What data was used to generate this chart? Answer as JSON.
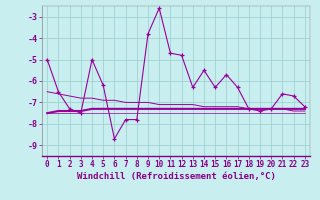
{
  "xlabel": "Windchill (Refroidissement éolien,°C)",
  "background_color": "#c8eef0",
  "grid_color": "#99cccc",
  "line_color": "#990099",
  "x_hours": [
    0,
    1,
    2,
    3,
    4,
    5,
    6,
    7,
    8,
    9,
    10,
    11,
    12,
    13,
    14,
    15,
    16,
    17,
    18,
    19,
    20,
    21,
    22,
    23
  ],
  "windchill": [
    -5.0,
    -6.5,
    -7.3,
    -7.5,
    -5.0,
    -6.2,
    -8.7,
    -7.8,
    -7.8,
    -3.8,
    -2.6,
    -4.7,
    -4.8,
    -6.3,
    -5.5,
    -6.3,
    -5.7,
    -6.3,
    -7.3,
    -7.4,
    -7.3,
    -6.6,
    -6.7,
    -7.2
  ],
  "line2": [
    -6.5,
    -6.6,
    -6.7,
    -6.8,
    -6.8,
    -6.9,
    -6.9,
    -7.0,
    -7.0,
    -7.0,
    -7.1,
    -7.1,
    -7.1,
    -7.1,
    -7.2,
    -7.2,
    -7.2,
    -7.2,
    -7.3,
    -7.3,
    -7.3,
    -7.3,
    -7.4,
    -7.4
  ],
  "line3": [
    -7.5,
    -7.4,
    -7.4,
    -7.4,
    -7.3,
    -7.3,
    -7.3,
    -7.3,
    -7.3,
    -7.3,
    -7.3,
    -7.3,
    -7.3,
    -7.3,
    -7.3,
    -7.3,
    -7.3,
    -7.3,
    -7.3,
    -7.3,
    -7.3,
    -7.3,
    -7.3,
    -7.3
  ],
  "line4": [
    -7.5,
    -7.5,
    -7.5,
    -7.5,
    -7.5,
    -7.5,
    -7.5,
    -7.5,
    -7.5,
    -7.5,
    -7.5,
    -7.5,
    -7.5,
    -7.5,
    -7.5,
    -7.5,
    -7.5,
    -7.5,
    -7.5,
    -7.5,
    -7.5,
    -7.5,
    -7.5,
    -7.5
  ],
  "ylim": [
    -9.5,
    -2.5
  ],
  "xlim": [
    -0.5,
    23.5
  ],
  "yticks": [
    -9,
    -8,
    -7,
    -6,
    -5,
    -4,
    -3
  ],
  "xticks": [
    0,
    1,
    2,
    3,
    4,
    5,
    6,
    7,
    8,
    9,
    10,
    11,
    12,
    13,
    14,
    15,
    16,
    17,
    18,
    19,
    20,
    21,
    22,
    23
  ],
  "tick_fontsize": 5.5,
  "xlabel_fontsize": 6.5,
  "label_color": "#880088"
}
